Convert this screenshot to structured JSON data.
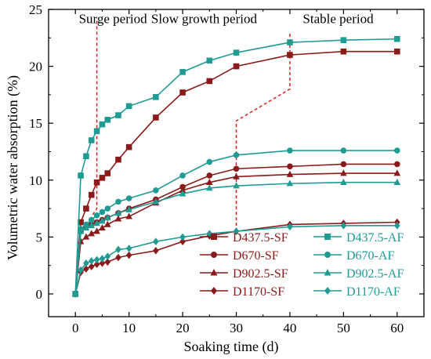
{
  "chart_data": {
    "type": "line",
    "xlabel": "Soaking time (d)",
    "ylabel": "Volumetric water absorption (%)",
    "xlim": [
      -5,
      65
    ],
    "ylim": [
      -2,
      25
    ],
    "xticks": [
      0,
      10,
      20,
      30,
      40,
      50,
      60
    ],
    "yticks": [
      0,
      5,
      10,
      15,
      20,
      25
    ],
    "annotations": [
      {
        "text": "Surge period",
        "x": 7,
        "y": 24.2
      },
      {
        "text": "Slow growth period",
        "x": 24,
        "y": 24.2
      },
      {
        "text": "Stable period",
        "x": 49,
        "y": 24.2
      }
    ],
    "dividers": [
      {
        "points": [
          [
            4,
            24
          ],
          [
            4,
            7.5
          ],
          [
            3,
            6.8
          ]
        ]
      },
      {
        "points": [
          [
            30,
            5.5
          ],
          [
            30,
            15.2
          ],
          [
            40,
            18
          ],
          [
            40,
            23
          ]
        ]
      }
    ],
    "colors": {
      "sf": "#8b1a1a",
      "af": "#1f9b94",
      "divider": "#e02020"
    },
    "series": [
      {
        "name": "D437.5-SF",
        "group": "sf",
        "marker": "square",
        "x": [
          0,
          1,
          2,
          3,
          4,
          5,
          6,
          8,
          10,
          15,
          20,
          25,
          30,
          40,
          50,
          60
        ],
        "y": [
          0,
          6.3,
          7.5,
          8.7,
          9.8,
          10.2,
          10.6,
          11.8,
          12.9,
          15.5,
          17.7,
          18.7,
          20.0,
          21.0,
          21.3,
          21.3
        ]
      },
      {
        "name": "D670-SF",
        "group": "sf",
        "marker": "circle",
        "x": [
          0,
          1,
          2,
          3,
          4,
          5,
          6,
          8,
          10,
          15,
          20,
          25,
          30,
          40,
          50,
          60
        ],
        "y": [
          0,
          5.5,
          5.9,
          6.1,
          6.3,
          6.5,
          6.7,
          7.1,
          7.5,
          8.3,
          9.4,
          10.4,
          11.0,
          11.2,
          11.4,
          11.4
        ]
      },
      {
        "name": "D902.5-SF",
        "group": "sf",
        "marker": "triangle",
        "x": [
          0,
          1,
          2,
          3,
          4,
          5,
          6,
          8,
          10,
          15,
          20,
          25,
          30,
          40,
          50,
          60
        ],
        "y": [
          0,
          4.6,
          5.0,
          5.3,
          5.5,
          5.8,
          6.1,
          6.6,
          6.8,
          8.0,
          9.1,
          9.8,
          10.3,
          10.5,
          10.6,
          10.6
        ]
      },
      {
        "name": "D1170-SF",
        "group": "sf",
        "marker": "diamond",
        "x": [
          0,
          1,
          2,
          3,
          4,
          5,
          6,
          8,
          10,
          15,
          20,
          25,
          30,
          40,
          50,
          60
        ],
        "y": [
          0,
          1.9,
          2.2,
          2.4,
          2.6,
          2.7,
          2.8,
          3.2,
          3.4,
          3.8,
          4.6,
          5.1,
          5.5,
          6.1,
          6.2,
          6.3
        ]
      },
      {
        "name": "D437.5-AF",
        "group": "af",
        "marker": "square",
        "x": [
          0,
          1,
          2,
          3,
          4,
          5,
          6,
          8,
          10,
          15,
          20,
          25,
          30,
          40,
          50,
          60
        ],
        "y": [
          0,
          10.4,
          12.1,
          13.5,
          14.3,
          14.9,
          15.3,
          15.7,
          16.5,
          17.3,
          19.5,
          20.5,
          21.2,
          22.1,
          22.3,
          22.4
        ]
      },
      {
        "name": "D670-AF",
        "group": "af",
        "marker": "circle",
        "x": [
          0,
          1,
          2,
          3,
          4,
          5,
          6,
          8,
          10,
          15,
          20,
          25,
          30,
          40,
          50,
          60
        ],
        "y": [
          0,
          5.7,
          6.1,
          6.5,
          6.9,
          7.2,
          7.5,
          8.1,
          8.4,
          9.1,
          10.4,
          11.6,
          12.2,
          12.6,
          12.6,
          12.6
        ]
      },
      {
        "name": "D902.5-AF",
        "group": "af",
        "marker": "triangle",
        "x": [
          0,
          1,
          2,
          3,
          4,
          5,
          6,
          8,
          10,
          15,
          20,
          25,
          30,
          40,
          50,
          60
        ],
        "y": [
          0,
          5.5,
          5.8,
          6.0,
          6.2,
          6.4,
          6.7,
          7.1,
          7.4,
          8.1,
          8.8,
          9.3,
          9.5,
          9.7,
          9.8,
          9.8
        ]
      },
      {
        "name": "D1170-AF",
        "group": "af",
        "marker": "diamond",
        "x": [
          0,
          1,
          2,
          3,
          4,
          5,
          6,
          8,
          10,
          15,
          20,
          25,
          30,
          40,
          50,
          60
        ],
        "y": [
          0,
          2.1,
          2.7,
          2.9,
          3.0,
          3.1,
          3.3,
          3.9,
          4.0,
          4.6,
          5.0,
          5.3,
          5.5,
          5.9,
          6.0,
          6.0
        ]
      }
    ],
    "legend": {
      "placement": "bottom-right",
      "columns": 2,
      "order": [
        "D437.5-SF",
        "D437.5-AF",
        "D670-SF",
        "D670-AF",
        "D902.5-SF",
        "D902.5-AF",
        "D1170-SF",
        "D1170-AF"
      ]
    }
  }
}
